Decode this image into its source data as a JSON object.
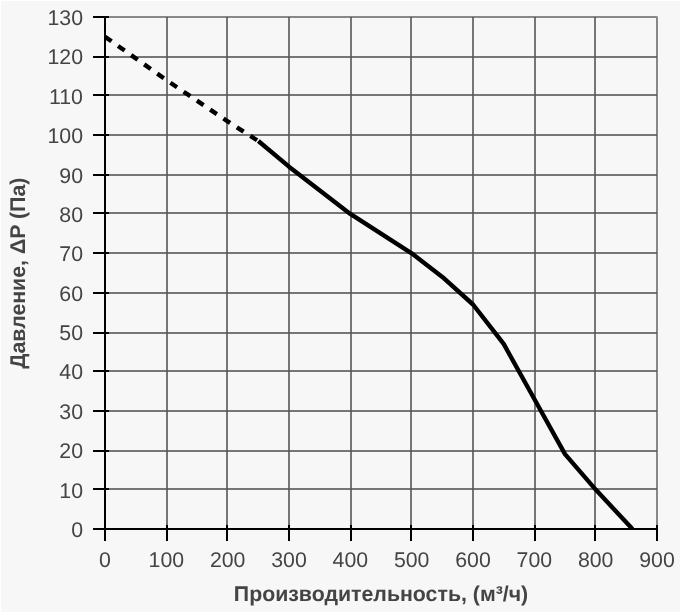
{
  "chart_data": {
    "type": "line",
    "xlabel": "Производительность, (м³/ч)",
    "ylabel": "Давление, ΔP (Па)",
    "series": [
      {
        "color": "#000000",
        "line_style": "dashed",
        "x": [
          0,
          100,
          200,
          250
        ],
        "values": [
          125,
          114,
          103.5,
          98.5
        ]
      },
      {
        "color": "#000000",
        "line_style": "solid",
        "x": [
          250,
          300,
          400,
          500,
          550,
          600,
          650,
          700,
          750,
          800,
          860
        ],
        "values": [
          98.5,
          92,
          80,
          70,
          64,
          57,
          47,
          33,
          19,
          10,
          0
        ]
      }
    ],
    "xlim": [
      0,
      900
    ],
    "ylim": [
      0,
      130
    ],
    "xticks": [
      0,
      100,
      200,
      300,
      400,
      500,
      600,
      700,
      800,
      900
    ],
    "yticks": [
      0,
      10,
      20,
      30,
      40,
      50,
      60,
      70,
      80,
      90,
      100,
      110,
      120,
      130
    ],
    "grid": true,
    "marker": "none"
  }
}
